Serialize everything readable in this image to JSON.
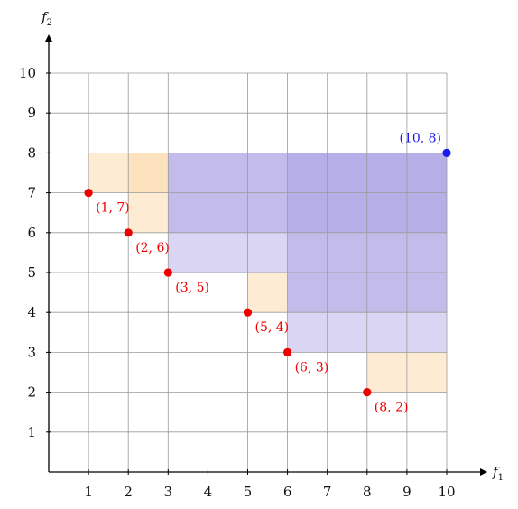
{
  "axes": {
    "x_label": "f",
    "x_label_sub": "1",
    "y_label": "f",
    "y_label_sub": "2",
    "x_range": [
      0,
      10
    ],
    "y_range": [
      0,
      10
    ],
    "x_ticks": [
      "1",
      "2",
      "3",
      "4",
      "5",
      "6",
      "7",
      "8",
      "9",
      "10"
    ],
    "y_ticks": [
      "1",
      "2",
      "3",
      "4",
      "5",
      "6",
      "7",
      "8",
      "9",
      "10"
    ],
    "grid": true
  },
  "colors": {
    "solution": "#ee0000",
    "reference": "#1a1aee",
    "box_orange": "#fcd9a8",
    "box_purple": "#a59be0",
    "grid": "#9a9a9a",
    "axis": "#000000"
  },
  "solutions": [
    {
      "x": 1,
      "y": 7,
      "label": "(1, 7)"
    },
    {
      "x": 2,
      "y": 6,
      "label": "(2, 6)"
    },
    {
      "x": 3,
      "y": 5,
      "label": "(3, 5)"
    },
    {
      "x": 5,
      "y": 4,
      "label": "(5, 4)"
    },
    {
      "x": 6,
      "y": 3,
      "label": "(6, 3)"
    },
    {
      "x": 8,
      "y": 2,
      "label": "(8, 2)"
    }
  ],
  "reference_point": {
    "x": 10,
    "y": 8,
    "label": "(10, 8)"
  },
  "boxes": [
    {
      "name": "box-1-7",
      "kind": "orange",
      "x0": 1,
      "y0": 7,
      "x1": 3,
      "y1": 8
    },
    {
      "name": "box-2-6",
      "kind": "orange",
      "x0": 2,
      "y0": 6,
      "x1": 3,
      "y1": 8
    },
    {
      "name": "box-5-4",
      "kind": "orange",
      "x0": 5,
      "y0": 4,
      "x1": 6,
      "y1": 5
    },
    {
      "name": "box-8-2",
      "kind": "orange",
      "x0": 8,
      "y0": 2,
      "x1": 10,
      "y1": 3
    },
    {
      "name": "box-3-5",
      "kind": "purple",
      "x0": 3,
      "y0": 5,
      "x1": 10,
      "y1": 8
    },
    {
      "name": "box-6-3",
      "kind": "purple",
      "x0": 6,
      "y0": 3,
      "x1": 10,
      "y1": 8
    },
    {
      "name": "box-upper",
      "kind": "purple",
      "x0": 3,
      "y0": 6,
      "x1": 10,
      "y1": 8
    },
    {
      "name": "box-right",
      "kind": "purple",
      "x0": 6,
      "y0": 4,
      "x1": 10,
      "y1": 5
    }
  ]
}
